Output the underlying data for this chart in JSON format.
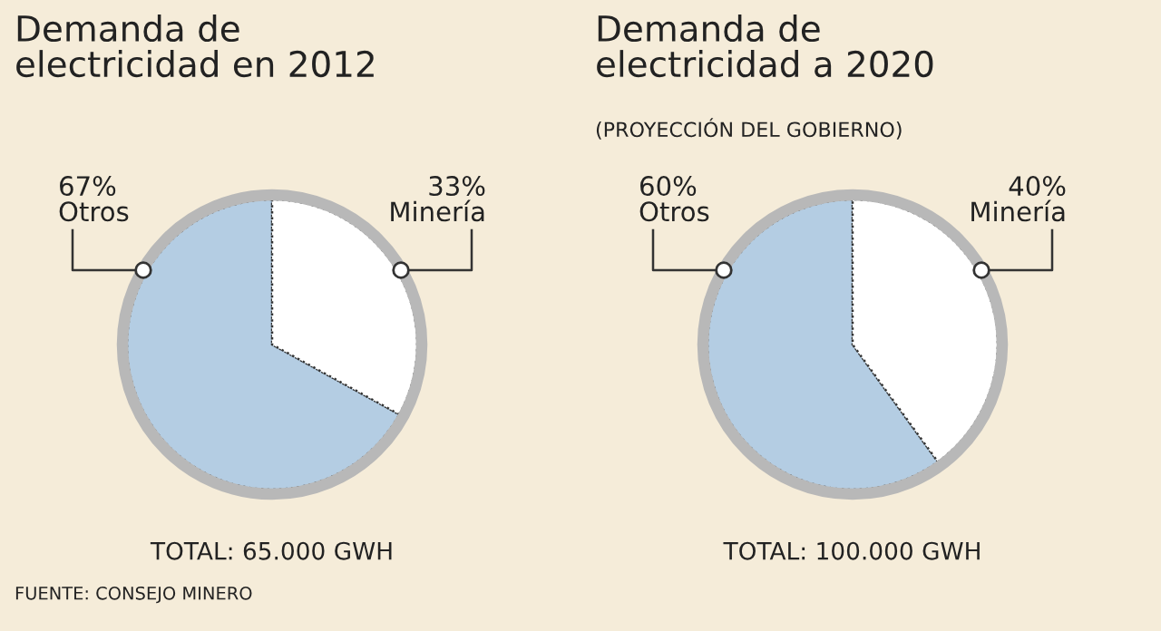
{
  "chart_data": [
    {
      "type": "pie",
      "title": "Demanda de\nelectricidad en 2012",
      "categories": [
        "Otros",
        "Minería"
      ],
      "values": [
        67,
        33
      ],
      "colors": [
        "#b4cde3",
        "#ffffff"
      ],
      "value_labels": [
        "67%",
        "33%"
      ],
      "annotations": [
        "TOTAL: 65.000 GWH",
        "FUENTE: CONSEJO MINERO"
      ]
    },
    {
      "type": "pie",
      "title": "Demanda de\nelectricidad a 2020",
      "subtitle": "(PROYECCIÓN DEL GOBIERNO)",
      "categories": [
        "Otros",
        "Minería"
      ],
      "values": [
        60,
        40
      ],
      "colors": [
        "#b4cde3",
        "#ffffff"
      ],
      "value_labels": [
        "60%",
        "40%"
      ],
      "annotations": [
        "TOTAL: 100.000 GWH"
      ]
    }
  ]
}
